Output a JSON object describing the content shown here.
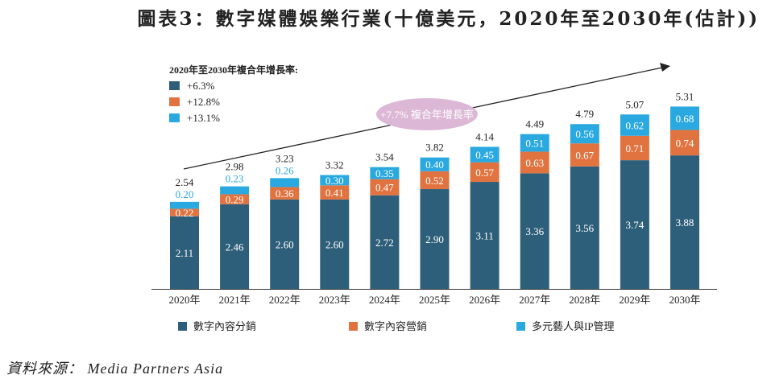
{
  "title": "圖表3：數字媒體娛樂行業(十億美元，2020年至2030年(估計))",
  "source": "資料來源： Media Partners Asia",
  "chart_data": {
    "type": "bar",
    "stacked": true,
    "categories": [
      "2020年",
      "2021年",
      "2022年",
      "2023年",
      "2024年",
      "2025年",
      "2026年",
      "2027年",
      "2028年",
      "2029年",
      "2030年"
    ],
    "series": [
      {
        "name": "數字內容分銷",
        "color": "#2e5f7a",
        "values": [
          2.11,
          2.46,
          2.6,
          2.6,
          2.72,
          2.9,
          3.11,
          3.36,
          3.56,
          3.74,
          3.88
        ]
      },
      {
        "name": "數字內容營銷",
        "color": "#e0733f",
        "values": [
          0.22,
          0.29,
          0.36,
          0.41,
          0.47,
          0.52,
          0.57,
          0.63,
          0.67,
          0.71,
          0.74
        ]
      },
      {
        "name": "多元藝人與IP管理",
        "color": "#29a9e0",
        "values": [
          0.2,
          0.23,
          0.26,
          0.3,
          0.35,
          0.4,
          0.45,
          0.51,
          0.56,
          0.62,
          0.68
        ]
      }
    ],
    "totals": [
      2.54,
      2.98,
      3.23,
      3.32,
      3.54,
      3.82,
      4.14,
      4.49,
      4.79,
      5.07,
      5.31
    ],
    "cagr_legend_title": "2020年至2030年複合年增長率:",
    "cagr_legend": [
      "+6.3%",
      "+12.8%",
      "+13.1%"
    ],
    "annotation": "+7.7% 複合年增長率",
    "annotation_color": "#dcb8d6",
    "ylim": [
      0,
      5.31
    ],
    "grid": false,
    "legend_position": "bottom"
  }
}
